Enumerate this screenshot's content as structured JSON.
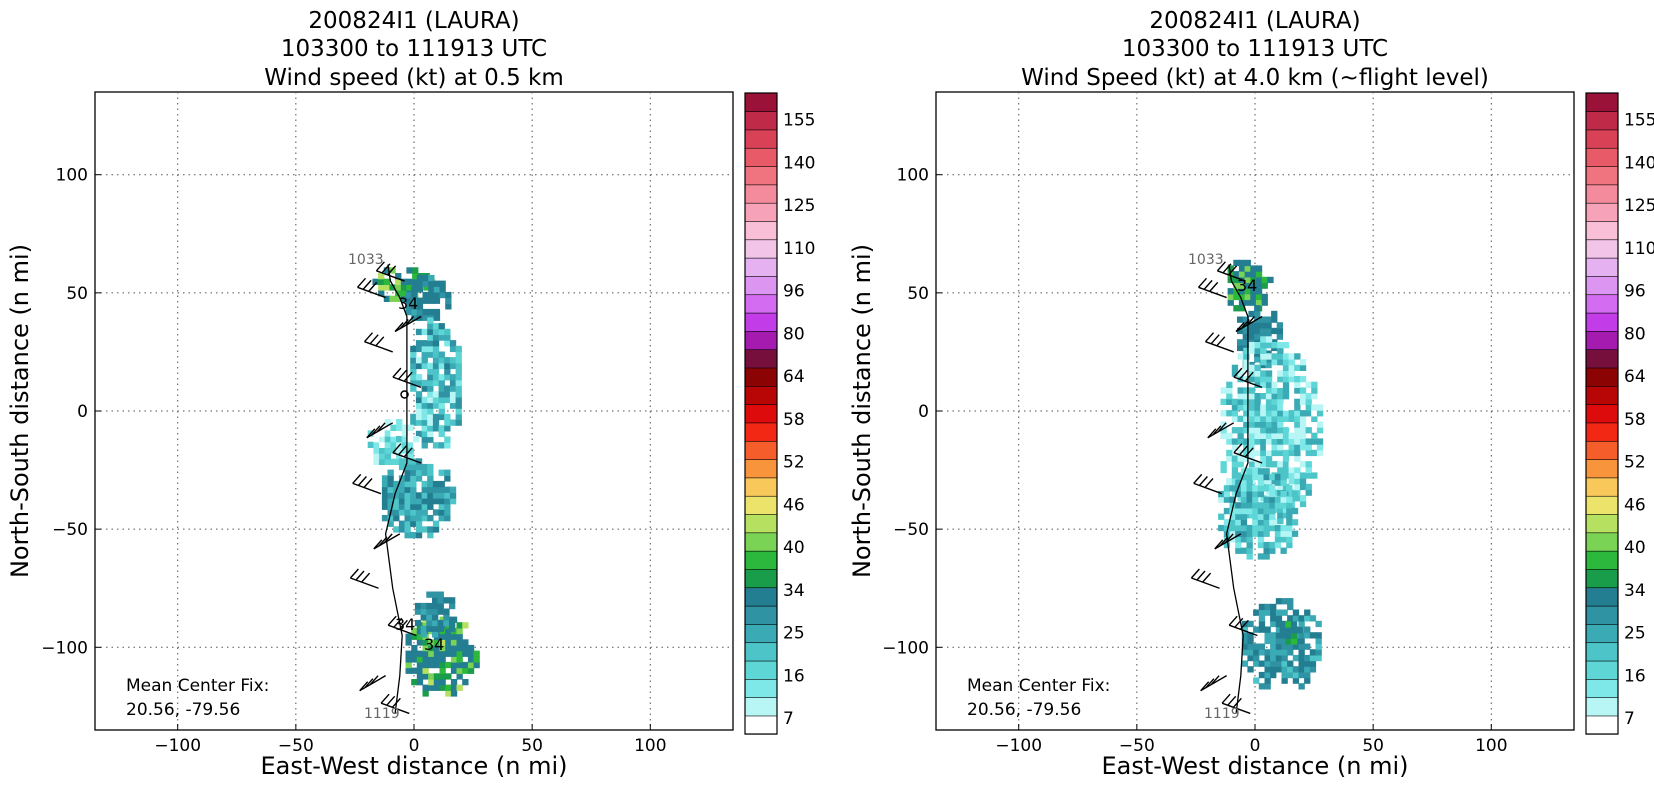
{
  "panels": [
    {
      "title_lines": [
        "200824I1 (LAURA)",
        "103300 to 111913 UTC",
        "Wind speed (kt) at 0.5 km"
      ],
      "xlabel": "East-West distance (n mi)",
      "ylabel": "North-South distance (n mi)",
      "mean_center_label": "Mean Center Fix:",
      "mean_center_value": "20.56, -79.56",
      "track_start_label": "1033",
      "track_end_label": "1119",
      "contour_labels": [
        "34",
        "34",
        "34"
      ]
    },
    {
      "title_lines": [
        "200824I1 (LAURA)",
        "103300 to 111913 UTC",
        "Wind Speed (kt) at 4.0 km (~flight level)"
      ],
      "xlabel": "East-West distance (n mi)",
      "ylabel": "North-South distance (n mi)",
      "mean_center_label": "Mean Center Fix:",
      "mean_center_value": "20.56, -79.56",
      "track_start_label": "1033",
      "track_end_label": "1119",
      "contour_labels": [
        "34"
      ]
    }
  ],
  "chart_data": [
    {
      "type": "heatmap",
      "title": "200824I1 (LAURA) 103300 to 111913 UTC Wind speed (kt) at 0.5 km",
      "xlabel": "East-West distance (n mi)",
      "ylabel": "North-South distance (n mi)",
      "xlim": [
        -135,
        135
      ],
      "ylim": [
        -135,
        135
      ],
      "xticks": [
        -100,
        -50,
        0,
        50,
        100
      ],
      "yticks": [
        -100,
        -50,
        0,
        50,
        100
      ],
      "grid": true,
      "colorbar_ticks": [
        7,
        16,
        25,
        34,
        40,
        46,
        52,
        58,
        64,
        80,
        96,
        110,
        125,
        140,
        155
      ],
      "track": [
        [
          -11,
          62
        ],
        [
          -10,
          55
        ],
        [
          -6,
          48
        ],
        [
          -3,
          40
        ],
        [
          -3,
          25
        ],
        [
          -3,
          10
        ],
        [
          -3,
          -5
        ],
        [
          -3,
          -22
        ],
        [
          -8,
          -35
        ],
        [
          -12,
          -52
        ],
        [
          -9,
          -75
        ],
        [
          -5,
          -95
        ],
        [
          -6,
          -112
        ],
        [
          -8,
          -128
        ]
      ],
      "center_marker": [
        -4,
        7
      ]
    },
    {
      "type": "heatmap",
      "title": "200824I1 (LAURA) 103300 to 111913 UTC Wind Speed (kt) at 4.0 km (~flight level)",
      "xlabel": "East-West distance (n mi)",
      "ylabel": "North-South distance (n mi)",
      "xlim": [
        -135,
        135
      ],
      "ylim": [
        -135,
        135
      ],
      "xticks": [
        -100,
        -50,
        0,
        50,
        100
      ],
      "yticks": [
        -100,
        -50,
        0,
        50,
        100
      ],
      "grid": true,
      "colorbar_ticks": [
        7,
        16,
        25,
        34,
        40,
        46,
        52,
        58,
        64,
        80,
        96,
        110,
        125,
        140,
        155
      ],
      "track": [
        [
          -11,
          62
        ],
        [
          -10,
          55
        ],
        [
          -6,
          48
        ],
        [
          -3,
          40
        ],
        [
          -3,
          25
        ],
        [
          -3,
          10
        ],
        [
          -3,
          -5
        ],
        [
          -3,
          -22
        ],
        [
          -8,
          -35
        ],
        [
          -12,
          -52
        ],
        [
          -9,
          -75
        ],
        [
          -5,
          -95
        ],
        [
          -6,
          -112
        ],
        [
          -8,
          -128
        ]
      ]
    }
  ],
  "colorbar": {
    "colors": [
      "#ffffff",
      "#b8f5f5",
      "#7ee8e8",
      "#5fd6d6",
      "#4cc4c8",
      "#3aaab5",
      "#2f93a4",
      "#247e92",
      "#1a9d4a",
      "#2bb83c",
      "#7bd356",
      "#b5e060",
      "#ece36a",
      "#f8c95a",
      "#f7943c",
      "#f55e2a",
      "#f22814",
      "#dd0b0b",
      "#b80606",
      "#8b0303",
      "#770f3c",
      "#a51bb0",
      "#c23ce8",
      "#d36cf0",
      "#dc96f2",
      "#e6b1f0",
      "#f2c4e8",
      "#f8bfd6",
      "#f6a3b9",
      "#f48b9c",
      "#f07480",
      "#e95a68",
      "#d94157",
      "#be2a48",
      "#9a1238"
    ]
  }
}
